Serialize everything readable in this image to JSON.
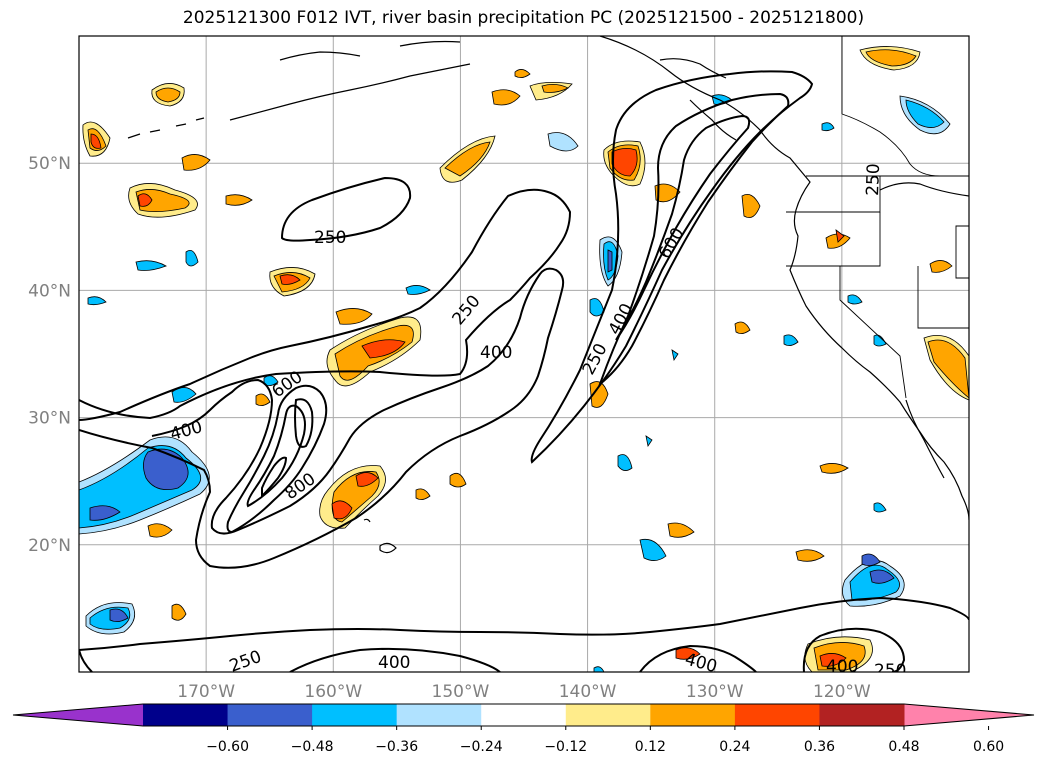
{
  "title": "2025121300 F012 IVT, river basin precipitation PC (2025121500 - 2025121800)",
  "map": {
    "lon_range": [
      -180,
      -110
    ],
    "lat_range": [
      10,
      60
    ],
    "lat_ticks": [
      {
        "value": 50,
        "label": "50°N"
      },
      {
        "value": 40,
        "label": "40°N"
      },
      {
        "value": 30,
        "label": "30°N"
      },
      {
        "value": 20,
        "label": "20°N"
      }
    ],
    "lon_ticks": [
      {
        "value": -170,
        "label": "170°W"
      },
      {
        "value": -160,
        "label": "160°W"
      },
      {
        "value": -150,
        "label": "150°W"
      },
      {
        "value": -140,
        "label": "140°W"
      },
      {
        "value": -130,
        "label": "130°W"
      },
      {
        "value": -120,
        "label": "120°W"
      }
    ],
    "grid": true,
    "ivt_contour_labels": [
      "250",
      "400",
      "600",
      "800",
      "250",
      "400",
      "250",
      "400",
      "600",
      "250",
      "400",
      "400",
      "250",
      "250"
    ]
  },
  "colorbar": {
    "extend": "both",
    "colors": [
      "#9932cc",
      "#00008b",
      "#3a5fcd",
      "#00bfff",
      "#b0e2ff",
      "#ffffff",
      "#ffec8b",
      "#ffa500",
      "#ff4500",
      "#b22222",
      "#ff82ab"
    ],
    "tick_labels": [
      "−0.60",
      "−0.48",
      "−0.36",
      "−0.24",
      "−0.12",
      "0.12",
      "0.24",
      "0.36",
      "0.48",
      "0.60"
    ]
  }
}
